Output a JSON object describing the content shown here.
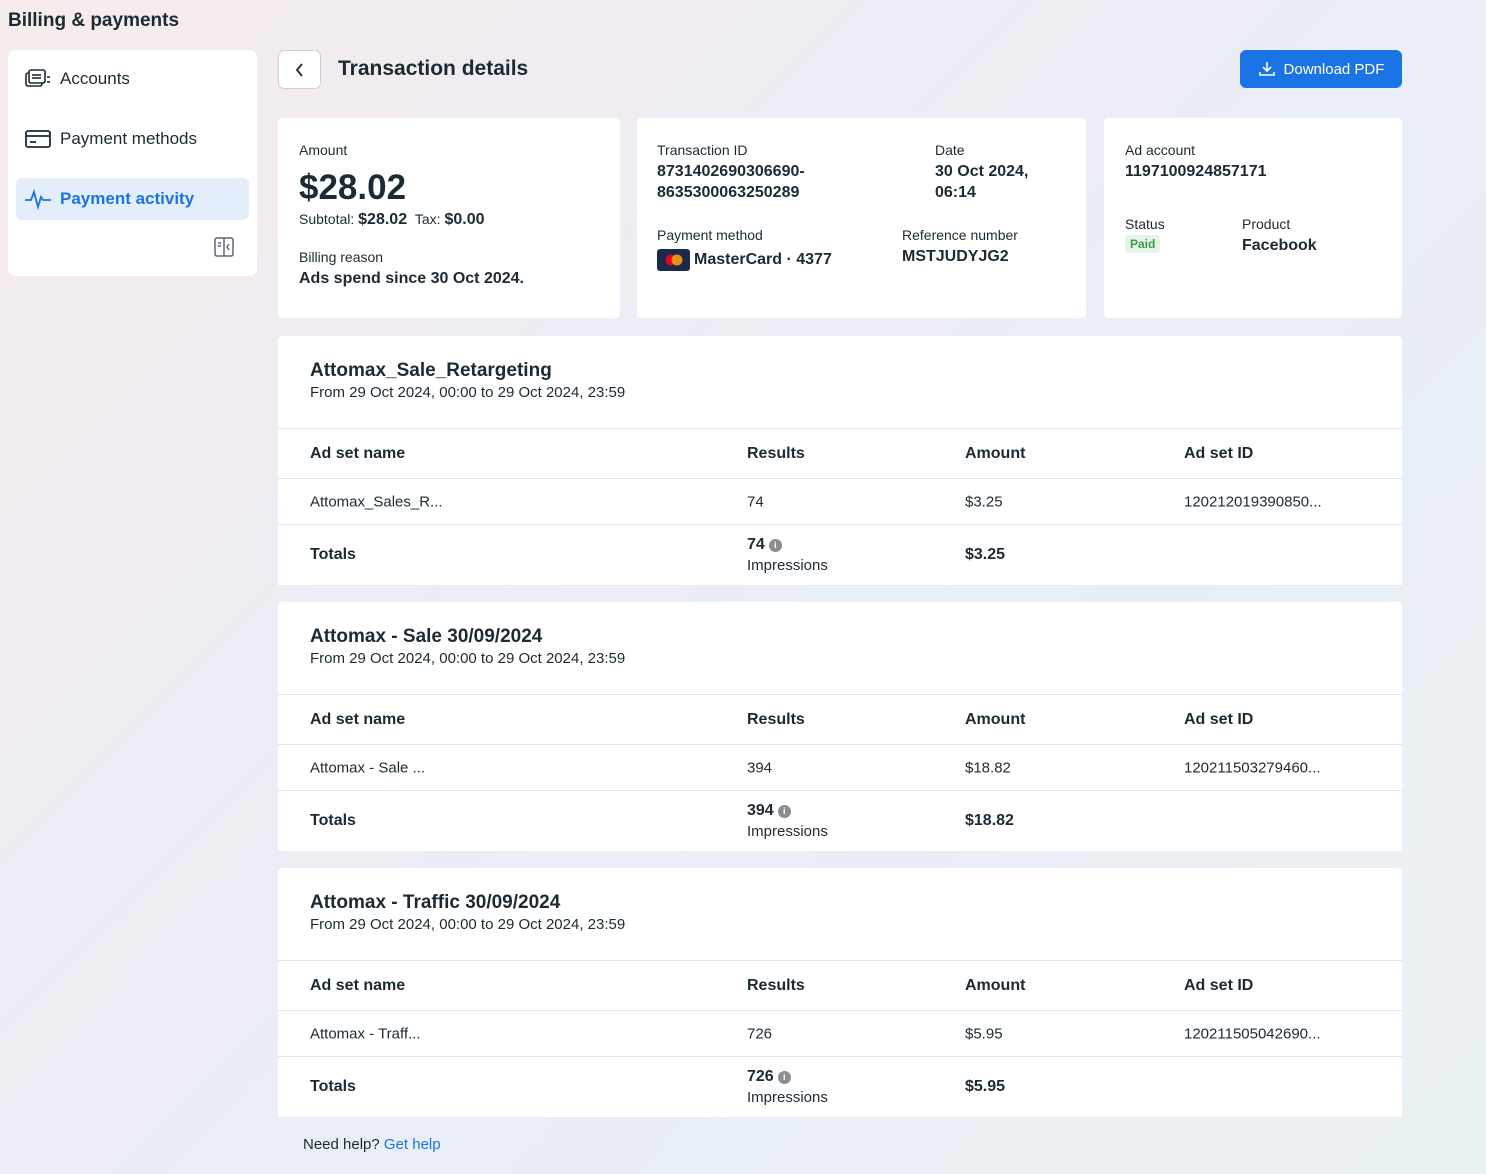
{
  "app": {
    "title": "Billing & payments"
  },
  "sidebar": {
    "items": [
      {
        "label": "Accounts",
        "icon": "accounts-icon"
      },
      {
        "label": "Payment methods",
        "icon": "credit-card-icon"
      },
      {
        "label": "Payment activity",
        "icon": "activity-icon",
        "active": true
      }
    ]
  },
  "header": {
    "title": "Transaction details",
    "download_label": "Download PDF"
  },
  "summary": {
    "amount_label": "Amount",
    "amount": "$28.02",
    "subtotal_label": "Subtotal:",
    "subtotal": "$28.02",
    "tax_label": "Tax:",
    "tax": "$0.00",
    "billing_reason_label": "Billing reason",
    "billing_reason": "Ads spend since 30 Oct 2024."
  },
  "transaction": {
    "id_label": "Transaction ID",
    "id_line1": "8731402690306690-",
    "id_line2": "8635300063250289",
    "date_label": "Date",
    "date_line1": "30 Oct 2024,",
    "date_line2": "06:14",
    "payment_method_label": "Payment method",
    "payment_method": "MasterCard · 4377",
    "reference_label": "Reference number",
    "reference": "MSTJUDYJG2"
  },
  "account": {
    "ad_account_label": "Ad account",
    "ad_account": "1197100924857171",
    "status_label": "Status",
    "status": "Paid",
    "product_label": "Product",
    "product": "Facebook"
  },
  "table_headers": {
    "name": "Ad set name",
    "results": "Results",
    "amount": "Amount",
    "id": "Ad set ID",
    "totals": "Totals",
    "impressions": "Impressions"
  },
  "campaigns": [
    {
      "title": "Attomax_Sale_Retargeting",
      "range": "From 29 Oct 2024, 00:00 to 29 Oct 2024, 23:59",
      "row": {
        "name": "Attomax_Sales_R...",
        "results": "74",
        "amount": "$3.25",
        "id": "120212019390850..."
      },
      "totals": {
        "results": "74",
        "amount": "$3.25"
      }
    },
    {
      "title": "Attomax - Sale 30/09/2024",
      "range": "From 29 Oct 2024, 00:00 to 29 Oct 2024, 23:59",
      "row": {
        "name": "Attomax - Sale ...",
        "results": "394",
        "amount": "$18.82",
        "id": "120211503279460..."
      },
      "totals": {
        "results": "394",
        "amount": "$18.82"
      }
    },
    {
      "title": "Attomax - Traffic 30/09/2024",
      "range": "From 29 Oct 2024, 00:00 to 29 Oct 2024, 23:59",
      "row": {
        "name": "Attomax - Traff...",
        "results": "726",
        "amount": "$5.95",
        "id": "120211505042690..."
      },
      "totals": {
        "results": "726",
        "amount": "$5.95"
      }
    }
  ],
  "footer": {
    "help_text": "Need help?",
    "help_link": "Get help"
  },
  "colors": {
    "accent": "#1b74e4",
    "paid_bg": "#e6f4e8",
    "paid_text": "#3a9b48"
  }
}
